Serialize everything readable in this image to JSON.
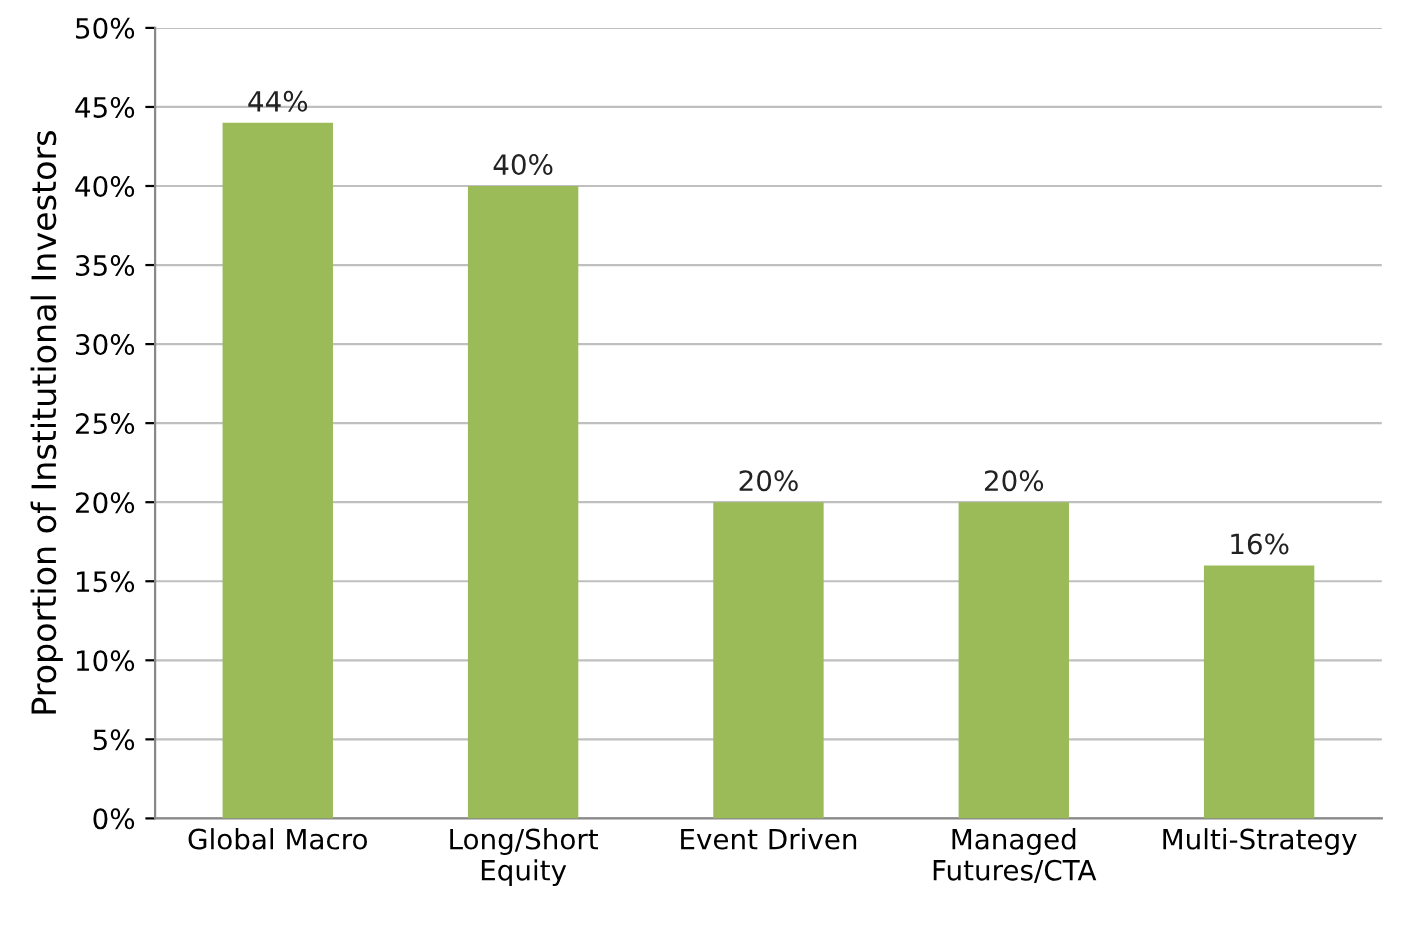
{
  "chart_data": {
    "type": "bar",
    "ylabel": "Proportion of Institutional Investors",
    "categories": [
      "Global Macro",
      "Long/Short\nEquity",
      "Event Driven",
      "Managed\nFutures/CTA",
      "Multi-Strategy"
    ],
    "values": [
      44,
      40,
      20,
      20,
      16
    ],
    "value_labels": [
      "44%",
      "40%",
      "20%",
      "20%",
      "16%"
    ],
    "color": "#9bbb59",
    "ylim": [
      0,
      50
    ],
    "yticks": [
      {
        "value": 0,
        "label": "0%"
      },
      {
        "value": 5,
        "label": "5%"
      },
      {
        "value": 10,
        "label": "10%"
      },
      {
        "value": 15,
        "label": "15%"
      },
      {
        "value": 20,
        "label": "20%"
      },
      {
        "value": 25,
        "label": "25%"
      },
      {
        "value": 30,
        "label": "30%"
      },
      {
        "value": 35,
        "label": "35%"
      },
      {
        "value": 40,
        "label": "40%"
      },
      {
        "value": 45,
        "label": "45%"
      },
      {
        "value": 50,
        "label": "50%"
      }
    ],
    "grid": "y"
  }
}
